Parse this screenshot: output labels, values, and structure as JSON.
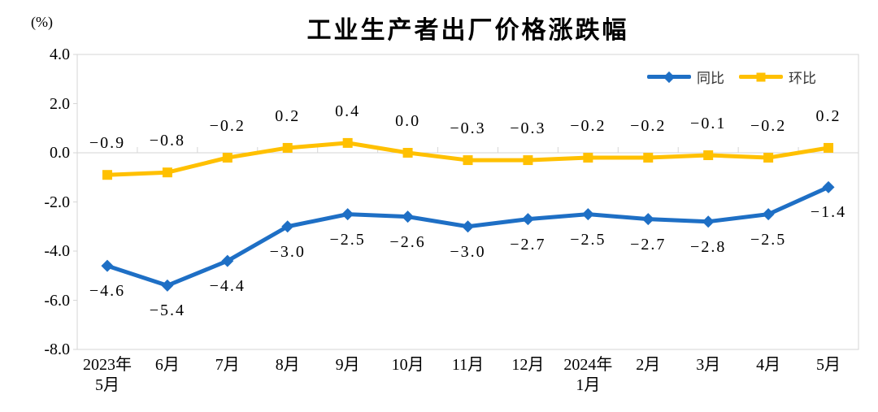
{
  "chart_data": {
    "type": "line",
    "title": "工业生产者出厂价格涨跌幅",
    "unit_label": "(%)",
    "categories": [
      "2023年\n5月",
      "6月",
      "7月",
      "8月",
      "9月",
      "10月",
      "11月",
      "12月",
      "2024年\n1月",
      "2月",
      "3月",
      "4月",
      "5月"
    ],
    "series": [
      {
        "name": "同比",
        "color": "#1E6FC5",
        "marker": "diamond",
        "label_position": "below",
        "values": [
          -4.6,
          -5.4,
          -4.4,
          -3.0,
          -2.5,
          -2.6,
          -3.0,
          -2.7,
          -2.5,
          -2.7,
          -2.8,
          -2.5,
          -1.4
        ]
      },
      {
        "name": "环比",
        "color": "#FFC000",
        "marker": "square",
        "label_position": "above",
        "values": [
          -0.9,
          -0.8,
          -0.2,
          0.2,
          0.4,
          0.0,
          -0.3,
          -0.3,
          -0.2,
          -0.2,
          -0.1,
          -0.2,
          0.2
        ]
      }
    ],
    "ylim": [
      -8,
      4
    ],
    "ytick_step": 2,
    "grid": false,
    "zero_line": true,
    "legend_position": "top-right",
    "axis_color": "#D6D6D6",
    "label_color": "#000000"
  }
}
